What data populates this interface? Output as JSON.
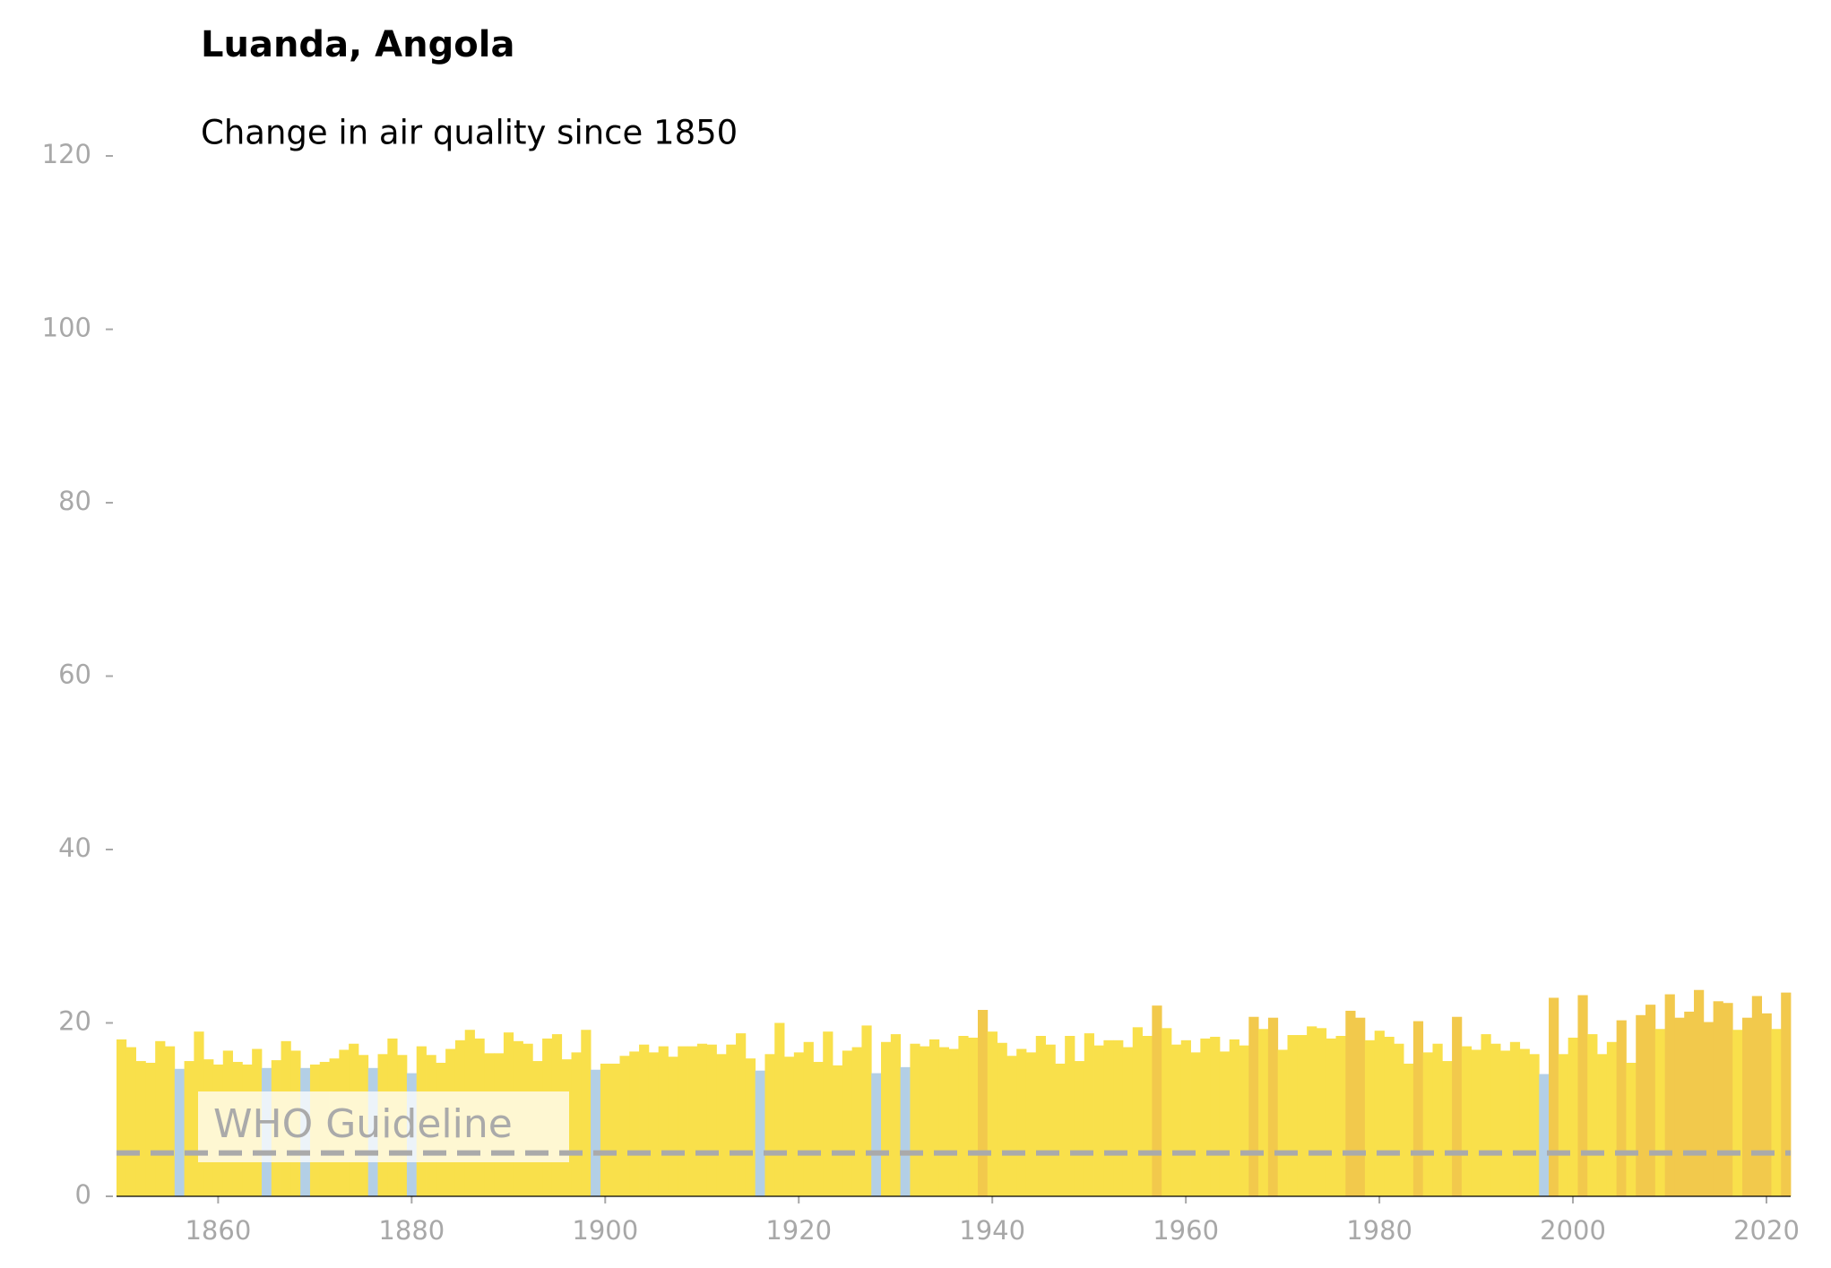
{
  "chart_data": {
    "type": "bar",
    "title": "Luanda, Angola",
    "subtitle": "Change in air quality since 1850",
    "x": [
      1850,
      1851,
      1852,
      1853,
      1854,
      1855,
      1856,
      1857,
      1858,
      1859,
      1860,
      1861,
      1862,
      1863,
      1864,
      1865,
      1866,
      1867,
      1868,
      1869,
      1870,
      1871,
      1872,
      1873,
      1874,
      1875,
      1876,
      1877,
      1878,
      1879,
      1880,
      1881,
      1882,
      1883,
      1884,
      1885,
      1886,
      1887,
      1888,
      1889,
      1890,
      1891,
      1892,
      1893,
      1894,
      1895,
      1896,
      1897,
      1898,
      1899,
      1900,
      1901,
      1902,
      1903,
      1904,
      1905,
      1906,
      1907,
      1908,
      1909,
      1910,
      1911,
      1912,
      1913,
      1914,
      1915,
      1916,
      1917,
      1918,
      1919,
      1920,
      1921,
      1922,
      1923,
      1924,
      1925,
      1926,
      1927,
      1928,
      1929,
      1930,
      1931,
      1932,
      1933,
      1934,
      1935,
      1936,
      1937,
      1938,
      1939,
      1940,
      1941,
      1942,
      1943,
      1944,
      1945,
      1946,
      1947,
      1948,
      1949,
      1950,
      1951,
      1952,
      1953,
      1954,
      1955,
      1956,
      1957,
      1958,
      1959,
      1960,
      1961,
      1962,
      1963,
      1964,
      1965,
      1966,
      1967,
      1968,
      1969,
      1970,
      1971,
      1972,
      1973,
      1974,
      1975,
      1976,
      1977,
      1978,
      1979,
      1980,
      1981,
      1982,
      1983,
      1984,
      1985,
      1986,
      1987,
      1988,
      1989,
      1990,
      1991,
      1992,
      1993,
      1994,
      1995,
      1996,
      1997,
      1998,
      1999,
      2000,
      2001,
      2002,
      2003,
      2004,
      2005,
      2006,
      2007,
      2008,
      2009,
      2010,
      2011,
      2012,
      2013,
      2014,
      2015,
      2016,
      2017,
      2018,
      2019,
      2020,
      2021,
      2022
    ],
    "values": [
      18.1,
      17.2,
      15.6,
      15.4,
      17.9,
      17.3,
      14.7,
      15.6,
      19.0,
      15.8,
      15.2,
      16.8,
      15.5,
      15.2,
      17.0,
      14.8,
      15.7,
      17.9,
      16.8,
      14.8,
      15.2,
      15.5,
      15.9,
      16.9,
      17.6,
      16.3,
      14.8,
      16.4,
      18.2,
      16.3,
      14.2,
      17.3,
      16.3,
      15.4,
      17.0,
      18.0,
      19.2,
      18.2,
      16.5,
      16.5,
      18.9,
      17.9,
      17.6,
      15.6,
      18.2,
      18.7,
      15.8,
      16.6,
      19.2,
      14.6,
      15.3,
      15.3,
      16.2,
      16.7,
      17.5,
      16.6,
      17.3,
      16.1,
      17.3,
      17.3,
      17.6,
      17.5,
      16.4,
      17.5,
      18.8,
      15.9,
      14.5,
      16.4,
      20.0,
      16.1,
      16.6,
      17.8,
      15.5,
      19.0,
      15.1,
      16.8,
      17.2,
      19.7,
      14.2,
      17.8,
      18.7,
      14.9,
      17.6,
      17.3,
      18.1,
      17.2,
      17.0,
      18.5,
      18.3,
      21.5,
      19.0,
      17.7,
      16.2,
      17.0,
      16.6,
      18.5,
      17.5,
      15.3,
      18.5,
      15.6,
      18.8,
      17.4,
      18.0,
      18.0,
      17.2,
      19.5,
      18.5,
      22.0,
      19.4,
      17.5,
      18.0,
      16.6,
      18.2,
      18.4,
      16.7,
      18.1,
      17.4,
      20.7,
      19.3,
      20.6,
      16.9,
      18.6,
      18.6,
      19.6,
      19.4,
      18.2,
      18.5,
      21.4,
      20.6,
      18.0,
      19.1,
      18.4,
      17.6,
      15.3,
      20.2,
      16.6,
      17.6,
      15.6,
      20.7,
      17.3,
      16.9,
      18.7,
      17.6,
      16.8,
      17.8,
      17.0,
      16.4,
      14.1,
      22.9,
      16.4,
      18.3,
      23.2,
      18.7,
      16.4,
      17.8,
      20.3,
      15.4,
      20.9,
      22.1,
      19.3,
      23.3,
      20.6,
      21.3,
      23.8,
      20.1,
      22.5,
      22.3,
      19.2,
      20.6,
      23.1,
      21.1,
      19.3,
      23.5
    ],
    "colors": [
      "#f9e04b",
      "#f9e04b",
      "#f9e04b",
      "#f9e04b",
      "#f9e04b",
      "#f9e04b",
      "#b3cfe6",
      "#f9e04b",
      "#f9e04b",
      "#f9e04b",
      "#f9e04b",
      "#f9e04b",
      "#f9e04b",
      "#f9e04b",
      "#f9e04b",
      "#b3cfe6",
      "#f9e04b",
      "#f9e04b",
      "#f9e04b",
      "#b3cfe6",
      "#f9e04b",
      "#f9e04b",
      "#f9e04b",
      "#f9e04b",
      "#f9e04b",
      "#f9e04b",
      "#b3cfe6",
      "#f9e04b",
      "#f9e04b",
      "#f9e04b",
      "#b3cfe6",
      "#f9e04b",
      "#f9e04b",
      "#f9e04b",
      "#f9e04b",
      "#f9e04b",
      "#f9e04b",
      "#f9e04b",
      "#f9e04b",
      "#f9e04b",
      "#f9e04b",
      "#f9e04b",
      "#f9e04b",
      "#f9e04b",
      "#f9e04b",
      "#f9e04b",
      "#f9e04b",
      "#f9e04b",
      "#f9e04b",
      "#b3cfe6",
      "#f9e04b",
      "#f9e04b",
      "#f9e04b",
      "#f9e04b",
      "#f9e04b",
      "#f9e04b",
      "#f9e04b",
      "#f9e04b",
      "#f9e04b",
      "#f9e04b",
      "#f9e04b",
      "#f9e04b",
      "#f9e04b",
      "#f9e04b",
      "#f9e04b",
      "#f9e04b",
      "#b3cfe6",
      "#f9e04b",
      "#f9e04b",
      "#f9e04b",
      "#f9e04b",
      "#f9e04b",
      "#f9e04b",
      "#f9e04b",
      "#f9e04b",
      "#f9e04b",
      "#f9e04b",
      "#f9e04b",
      "#b3cfe6",
      "#f9e04b",
      "#f9e04b",
      "#b3cfe6",
      "#f9e04b",
      "#f9e04b",
      "#f9e04b",
      "#f9e04b",
      "#f9e04b",
      "#f9e04b",
      "#f9e04b",
      "#f2c94c",
      "#f9e04b",
      "#f9e04b",
      "#f9e04b",
      "#f9e04b",
      "#f9e04b",
      "#f9e04b",
      "#f9e04b",
      "#f9e04b",
      "#f9e04b",
      "#f9e04b",
      "#f9e04b",
      "#f9e04b",
      "#f9e04b",
      "#f9e04b",
      "#f9e04b",
      "#f9e04b",
      "#f9e04b",
      "#f2c94c",
      "#f9e04b",
      "#f9e04b",
      "#f9e04b",
      "#f9e04b",
      "#f9e04b",
      "#f9e04b",
      "#f9e04b",
      "#f9e04b",
      "#f9e04b",
      "#f2c94c",
      "#f9e04b",
      "#f2c94c",
      "#f9e04b",
      "#f9e04b",
      "#f9e04b",
      "#f9e04b",
      "#f9e04b",
      "#f9e04b",
      "#f9e04b",
      "#f2c94c",
      "#f2c94c",
      "#f9e04b",
      "#f9e04b",
      "#f9e04b",
      "#f9e04b",
      "#f9e04b",
      "#f2c94c",
      "#f9e04b",
      "#f9e04b",
      "#f9e04b",
      "#f2c94c",
      "#f9e04b",
      "#f9e04b",
      "#f9e04b",
      "#f9e04b",
      "#f9e04b",
      "#f9e04b",
      "#f9e04b",
      "#f9e04b",
      "#b3cfe6",
      "#f2c94c",
      "#f9e04b",
      "#f9e04b",
      "#f2c94c",
      "#f9e04b",
      "#f9e04b",
      "#f9e04b",
      "#f2c94c",
      "#f9e04b",
      "#f2c94c",
      "#f2c94c",
      "#f9e04b",
      "#f2c94c",
      "#f2c94c",
      "#f2c94c",
      "#f2c94c",
      "#f2c94c",
      "#f2c94c",
      "#f2c94c",
      "#f9e04b",
      "#f2c94c",
      "#f2c94c",
      "#f2c94c",
      "#f9e04b",
      "#f2c94c"
    ],
    "reference_line": {
      "value": 5,
      "label": "WHO Guideline",
      "color": "#aaaaaa"
    },
    "xlim": [
      1849.5,
      2022.5
    ],
    "xticks": [
      1860,
      1880,
      1900,
      1920,
      1940,
      1960,
      1980,
      2000,
      2020
    ],
    "ylim": [
      0,
      120
    ],
    "yticks": [
      0,
      20,
      40,
      60,
      80,
      100,
      120
    ]
  }
}
